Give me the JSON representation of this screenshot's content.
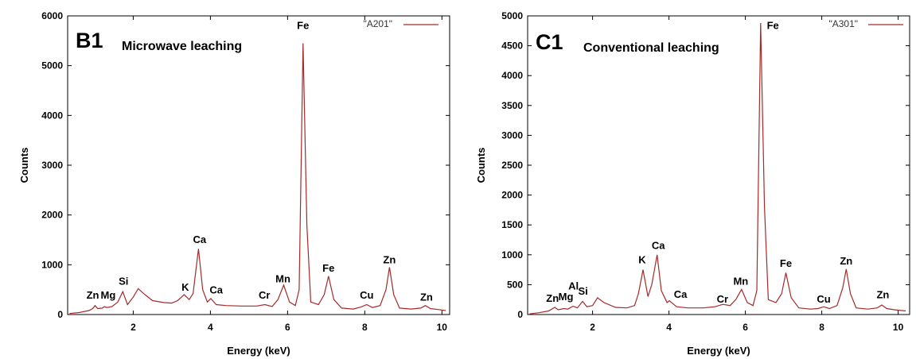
{
  "chart_data": [
    {
      "type": "line",
      "panel_label": "B1",
      "subtitle": "Microwave leaching",
      "xlabel": "Energy (keV)",
      "ylabel": "Counts",
      "xlim": [
        0.3,
        10.2
      ],
      "ylim": [
        0,
        6000
      ],
      "x_ticks": [
        "2",
        "4",
        "6",
        "8",
        "10"
      ],
      "y_ticks": [
        "0",
        "1000",
        "2000",
        "3000",
        "4000",
        "5000",
        "6000"
      ],
      "legend": "\"A201\"",
      "legend_position": "top-right",
      "line_color": "#a52a2a",
      "grid": false,
      "series": [
        {
          "x": [
            0.35,
            0.6,
            0.85,
            0.95,
            1.01,
            1.08,
            1.2,
            1.25,
            1.32,
            1.45,
            1.6,
            1.73,
            1.85,
            2.0,
            2.13,
            2.3,
            2.5,
            2.8,
            3.0,
            3.15,
            3.32,
            3.45,
            3.55,
            3.69,
            3.8,
            3.92,
            4.01,
            4.15,
            4.4,
            4.8,
            5.2,
            5.41,
            5.6,
            5.75,
            5.9,
            6.05,
            6.2,
            6.3,
            6.4,
            6.5,
            6.6,
            6.8,
            6.95,
            7.06,
            7.2,
            7.4,
            7.7,
            7.9,
            8.05,
            8.2,
            8.4,
            8.55,
            8.64,
            8.75,
            8.9,
            9.2,
            9.45,
            9.57,
            9.7,
            9.9,
            10.1
          ],
          "y": [
            20,
            40,
            80,
            120,
            180,
            120,
            130,
            160,
            140,
            160,
            250,
            460,
            200,
            350,
            520,
            400,
            280,
            240,
            230,
            280,
            400,
            300,
            420,
            1320,
            500,
            250,
            320,
            200,
            180,
            170,
            170,
            200,
            160,
            300,
            590,
            250,
            180,
            500,
            5450,
            1800,
            250,
            200,
            400,
            770,
            300,
            130,
            110,
            150,
            200,
            140,
            180,
            500,
            950,
            400,
            130,
            110,
            130,
            180,
            120,
            100,
            80
          ]
        }
      ],
      "peak_labels": [
        {
          "text": "Zn",
          "x": 0.95,
          "y": 320
        },
        {
          "text": "Mg",
          "x": 1.35,
          "y": 320
        },
        {
          "text": "Si",
          "x": 1.75,
          "y": 600
        },
        {
          "text": "Ca",
          "x": 3.72,
          "y": 1440
        },
        {
          "text": "K",
          "x": 3.35,
          "y": 480
        },
        {
          "text": "Ca",
          "x": 4.15,
          "y": 420
        },
        {
          "text": "Cr",
          "x": 5.4,
          "y": 320
        },
        {
          "text": "Mn",
          "x": 5.88,
          "y": 650
        },
        {
          "text": "Fe",
          "x": 6.4,
          "y": 5740
        },
        {
          "text": "Fe",
          "x": 7.06,
          "y": 860
        },
        {
          "text": "Cu",
          "x": 8.05,
          "y": 320
        },
        {
          "text": "Zn",
          "x": 8.64,
          "y": 1030
        },
        {
          "text": "Zn",
          "x": 9.6,
          "y": 280
        }
      ]
    },
    {
      "type": "line",
      "panel_label": "C1",
      "subtitle": "Conventional leaching",
      "xlabel": "Energy (keV)",
      "ylabel": "Counts",
      "xlim": [
        0.3,
        10.3
      ],
      "ylim": [
        0,
        5000
      ],
      "x_ticks": [
        "2",
        "4",
        "6",
        "8",
        "10"
      ],
      "y_ticks": [
        "0",
        "500",
        "1000",
        "1500",
        "2000",
        "2500",
        "3000",
        "3500",
        "4000",
        "4500",
        "5000"
      ],
      "legend": "\"A301\"",
      "legend_position": "top-right",
      "line_color": "#a52a2a",
      "grid": false,
      "series": [
        {
          "x": [
            0.35,
            0.6,
            0.85,
            1.01,
            1.1,
            1.25,
            1.35,
            1.49,
            1.6,
            1.74,
            1.85,
            2.0,
            2.13,
            2.3,
            2.6,
            2.9,
            3.1,
            3.2,
            3.32,
            3.45,
            3.55,
            3.69,
            3.8,
            3.95,
            4.01,
            4.2,
            4.5,
            4.9,
            5.2,
            5.41,
            5.6,
            5.75,
            5.9,
            6.05,
            6.2,
            6.3,
            6.4,
            6.5,
            6.6,
            6.8,
            6.95,
            7.06,
            7.2,
            7.4,
            7.7,
            7.9,
            8.05,
            8.2,
            8.4,
            8.55,
            8.64,
            8.75,
            8.9,
            9.2,
            9.45,
            9.57,
            9.7,
            9.9,
            10.2
          ],
          "y": [
            10,
            30,
            60,
            120,
            80,
            100,
            90,
            140,
            110,
            220,
            130,
            150,
            280,
            200,
            120,
            110,
            150,
            350,
            750,
            300,
            500,
            1000,
            400,
            200,
            230,
            130,
            110,
            110,
            130,
            170,
            150,
            250,
            420,
            200,
            150,
            400,
            4880,
            1800,
            250,
            200,
            350,
            700,
            280,
            110,
            90,
            100,
            130,
            100,
            150,
            450,
            760,
            350,
            110,
            90,
            110,
            160,
            100,
            80,
            60
          ]
        }
      ],
      "peak_labels": [
        {
          "text": "Zn",
          "x": 0.95,
          "y": 210
        },
        {
          "text": "Al",
          "x": 1.5,
          "y": 420
        },
        {
          "text": "Mg",
          "x": 1.3,
          "y": 240
        },
        {
          "text": "Si",
          "x": 1.75,
          "y": 330
        },
        {
          "text": "K",
          "x": 3.3,
          "y": 860
        },
        {
          "text": "Ca",
          "x": 3.72,
          "y": 1100
        },
        {
          "text": "Ca",
          "x": 4.3,
          "y": 280
        },
        {
          "text": "Cr",
          "x": 5.4,
          "y": 200
        },
        {
          "text": "Mn",
          "x": 5.88,
          "y": 500
        },
        {
          "text": "Fe",
          "x": 6.72,
          "y": 4780
        },
        {
          "text": "Fe",
          "x": 7.06,
          "y": 800
        },
        {
          "text": "Cu",
          "x": 8.05,
          "y": 200
        },
        {
          "text": "Zn",
          "x": 8.64,
          "y": 840
        },
        {
          "text": "Zn",
          "x": 9.6,
          "y": 270
        }
      ]
    }
  ]
}
